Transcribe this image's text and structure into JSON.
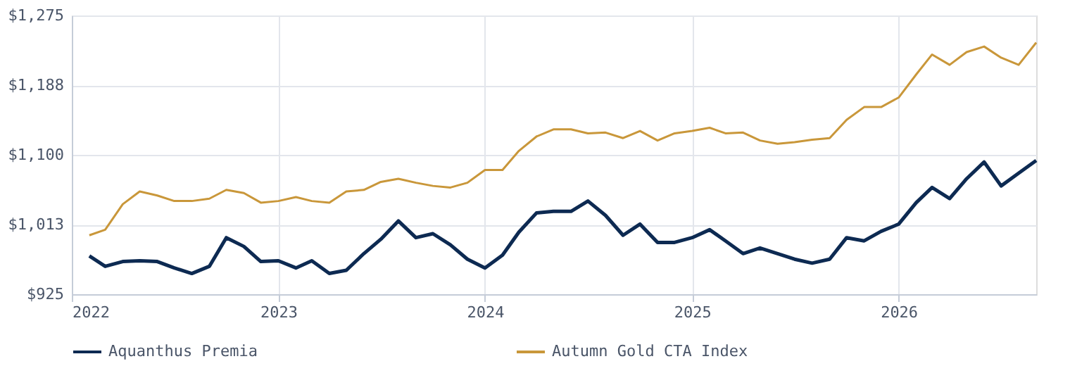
{
  "chart_data": {
    "type": "line",
    "x": [
      "2022-02",
      "2022-03",
      "2022-04",
      "2022-05",
      "2022-06",
      "2022-07",
      "2022-08",
      "2022-09",
      "2022-10",
      "2022-11",
      "2022-12",
      "2023-01",
      "2023-02",
      "2023-03",
      "2023-04",
      "2023-05",
      "2023-06",
      "2023-07",
      "2023-08",
      "2023-09",
      "2023-10",
      "2023-11",
      "2023-12",
      "2024-01",
      "2024-02",
      "2024-03",
      "2024-04",
      "2024-05",
      "2024-06",
      "2024-07",
      "2024-08",
      "2024-09",
      "2024-10",
      "2024-11",
      "2024-12",
      "2025-01",
      "2025-02",
      "2025-03",
      "2025-04",
      "2025-05",
      "2025-06",
      "2025-07",
      "2025-08",
      "2025-09",
      "2025-10",
      "2025-11",
      "2025-12",
      "2026-01",
      "2026-02",
      "2026-03",
      "2026-04",
      "2026-05",
      "2026-06",
      "2026-07",
      "2026-08",
      "2026-09"
    ],
    "series": [
      {
        "name": "Aquanthus Premia",
        "color": "#0d2a52",
        "values": [
          973,
          960,
          966,
          967,
          966,
          958,
          951,
          960,
          996,
          985,
          966,
          967,
          958,
          967,
          951,
          955,
          976,
          994,
          1017,
          996,
          1001,
          987,
          969,
          958,
          974,
          1003,
          1027,
          1029,
          1029,
          1042,
          1024,
          999,
          1013,
          990,
          990,
          996,
          1006,
          992,
          976,
          983,
          976,
          969,
          964,
          969,
          996,
          992,
          1004,
          1013,
          1040,
          1059,
          1045,
          1070,
          1091,
          1061,
          1077,
          1093
        ]
      },
      {
        "name": "Autumn Gold CTA Index",
        "color": "#c9973a",
        "values": [
          999,
          1006,
          1038,
          1054,
          1049,
          1042,
          1042,
          1045,
          1056,
          1052,
          1040,
          1042,
          1047,
          1042,
          1040,
          1054,
          1056,
          1066,
          1070,
          1065,
          1061,
          1059,
          1065,
          1081,
          1081,
          1105,
          1123,
          1132,
          1132,
          1127,
          1128,
          1121,
          1130,
          1118,
          1127,
          1130,
          1134,
          1127,
          1128,
          1118,
          1114,
          1116,
          1119,
          1121,
          1144,
          1160,
          1160,
          1172,
          1201,
          1226,
          1213,
          1229,
          1236,
          1222,
          1213,
          1241
        ]
      }
    ],
    "xlim": [
      "2022-01",
      "2026-09"
    ],
    "xticks": [
      {
        "value": "2022",
        "label": "2022"
      },
      {
        "value": "2023",
        "label": "2023"
      },
      {
        "value": "2024",
        "label": "2024"
      },
      {
        "value": "2025",
        "label": "2025"
      },
      {
        "value": "2026",
        "label": "2026"
      }
    ],
    "ylim": [
      925,
      1275
    ],
    "yticks": [
      {
        "value": 925,
        "label": "$925"
      },
      {
        "value": 1012.5,
        "label": "$1,013"
      },
      {
        "value": 1100,
        "label": "$1,100"
      },
      {
        "value": 1187.5,
        "label": "$1,188"
      },
      {
        "value": 1275,
        "label": "$1,275"
      }
    ],
    "grid": true,
    "legend": "bottom",
    "marker": "none",
    "line_style": "solid"
  }
}
